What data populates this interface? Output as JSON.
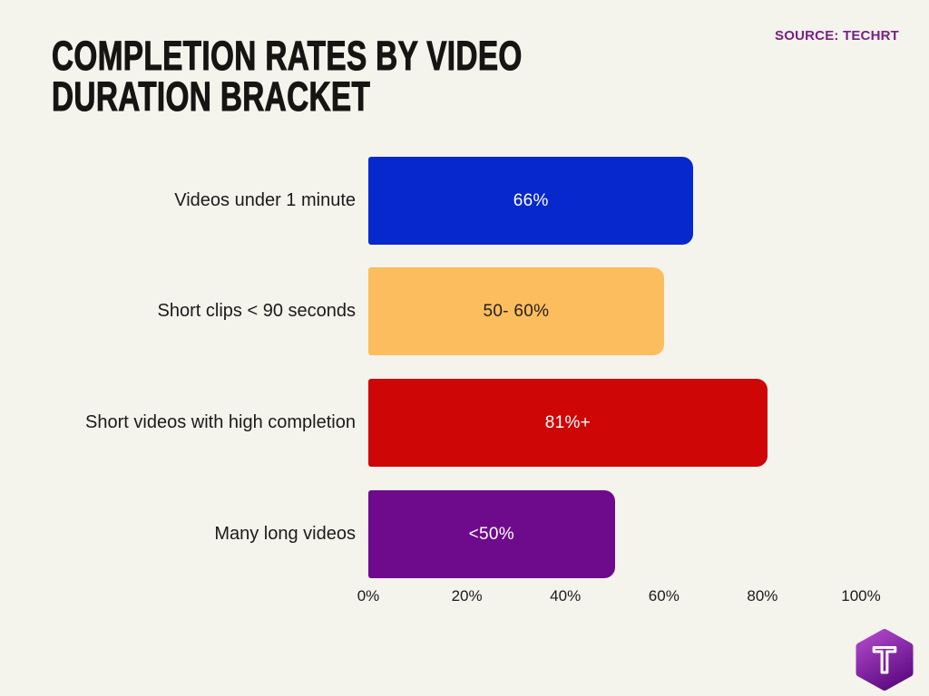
{
  "page": {
    "background_color": "#f4f3ec"
  },
  "header": {
    "title": "COMPLETION RATES BY VIDEO DURATION BRACKET",
    "title_color": "#161513",
    "source_label": "SOURCE: TECHRT",
    "source_color": "#7a1f87"
  },
  "chart_data": {
    "type": "bar",
    "orientation": "horizontal",
    "title": "COMPLETION RATES BY VIDEO DURATION BRACKET",
    "categories": [
      "Videos under 1 minute",
      "Short clips < 90 seconds",
      "Short videos with high completion",
      "Many long videos"
    ],
    "values": [
      66,
      60,
      81,
      50
    ],
    "bar_lengths_pct": [
      66,
      60,
      81,
      50
    ],
    "value_labels": [
      "66%",
      "50- 60%",
      "81%+",
      "<50%"
    ],
    "bar_colors": [
      "#0628cd",
      "#fcbd5e",
      "#ce0606",
      "#6e0b8c"
    ],
    "value_label_colors": [
      "#ffffff",
      "#26211c",
      "#ffffff",
      "#ffffff"
    ],
    "xlabel": "",
    "ylabel": "",
    "xlim": [
      0,
      100
    ],
    "x_ticks": [
      "0%",
      "20%",
      "40%",
      "60%",
      "80%",
      "100%"
    ],
    "x_tick_values": [
      0,
      20,
      40,
      60,
      80,
      100
    ],
    "grid": false,
    "legend": false
  },
  "logo": {
    "letter": "T",
    "shape": "rounded-hexagon",
    "gradient_top": "#a944c4",
    "gradient_bottom": "#5e0a82"
  }
}
